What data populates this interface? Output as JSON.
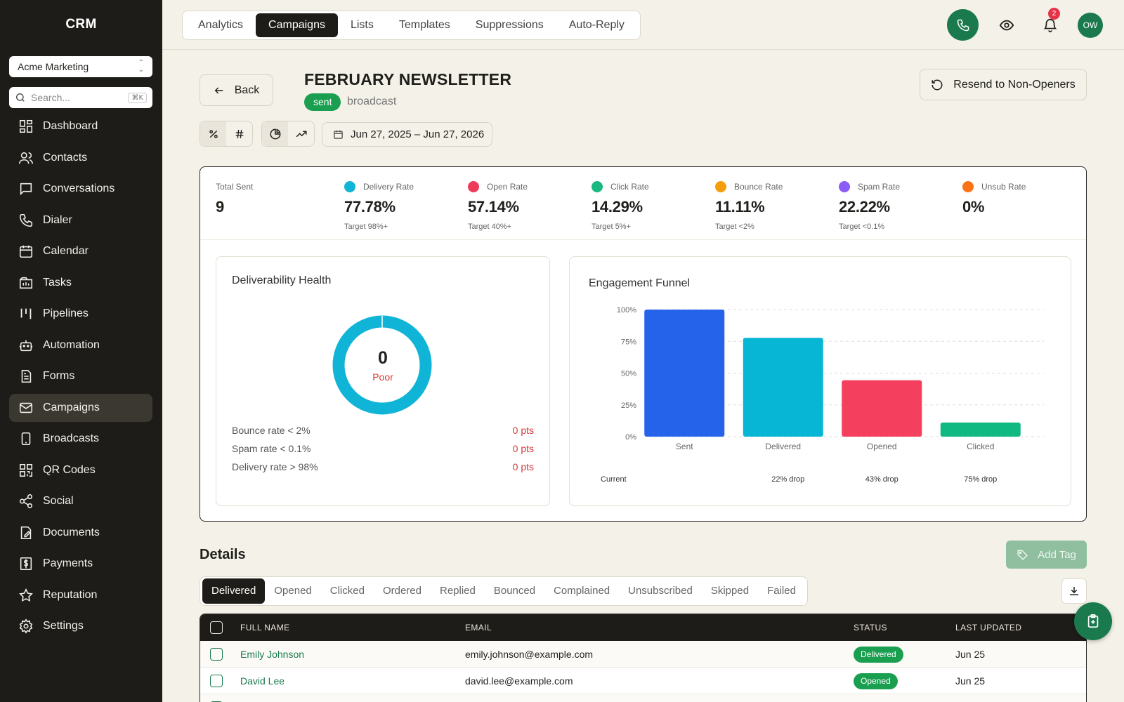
{
  "app": {
    "name": "CRM"
  },
  "sidebar": {
    "org": "Acme Marketing",
    "search_placeholder": "Search...",
    "search_shortcut": "⌘K",
    "items": [
      {
        "label": "Dashboard",
        "icon": "dashboard-icon"
      },
      {
        "label": "Contacts",
        "icon": "contacts-icon"
      },
      {
        "label": "Conversations",
        "icon": "chat-icon"
      },
      {
        "label": "Dialer",
        "icon": "phone-icon"
      },
      {
        "label": "Calendar",
        "icon": "calendar-icon"
      },
      {
        "label": "Tasks",
        "icon": "tasks-icon"
      },
      {
        "label": "Pipelines",
        "icon": "pipeline-icon"
      },
      {
        "label": "Automation",
        "icon": "robot-icon"
      },
      {
        "label": "Forms",
        "icon": "form-icon"
      },
      {
        "label": "Campaigns",
        "icon": "mail-icon",
        "active": true
      },
      {
        "label": "Broadcasts",
        "icon": "broadcast-icon"
      },
      {
        "label": "QR Codes",
        "icon": "qr-icon"
      },
      {
        "label": "Social",
        "icon": "share-icon"
      },
      {
        "label": "Documents",
        "icon": "document-icon"
      },
      {
        "label": "Payments",
        "icon": "dollar-icon"
      },
      {
        "label": "Reputation",
        "icon": "star-icon"
      },
      {
        "label": "Settings",
        "icon": "gear-icon"
      }
    ]
  },
  "topbar": {
    "tabs": [
      {
        "label": "Analytics"
      },
      {
        "label": "Campaigns",
        "active": true
      },
      {
        "label": "Lists"
      },
      {
        "label": "Templates"
      },
      {
        "label": "Suppressions"
      },
      {
        "label": "Auto-Reply"
      }
    ],
    "notification_count": "2",
    "avatar_initials": "OW"
  },
  "header": {
    "back_label": "Back",
    "title": "FEBRUARY NEWSLETTER",
    "status": "sent",
    "type": "broadcast",
    "resend_label": "Resend to Non-Openers",
    "date_range": "Jun 27, 2025 – Jun 27, 2026"
  },
  "stats": [
    {
      "label": "Total Sent",
      "value": "9",
      "target": ""
    },
    {
      "label": "Delivery Rate",
      "value": "77.78%",
      "target": "Target 98%+",
      "color": "#10b4d6"
    },
    {
      "label": "Open Rate",
      "value": "57.14%",
      "target": "Target 40%+",
      "color": "#ef3b5a"
    },
    {
      "label": "Click Rate",
      "value": "14.29%",
      "target": "Target 5%+",
      "color": "#19b981"
    },
    {
      "label": "Bounce Rate",
      "value": "11.11%",
      "target": "Target <2%",
      "color": "#f59e0b"
    },
    {
      "label": "Spam Rate",
      "value": "22.22%",
      "target": "Target <0.1%",
      "color": "#8b5cf6"
    },
    {
      "label": "Unsub Rate",
      "value": "0%",
      "target": "",
      "color": "#f97316"
    }
  ],
  "health": {
    "title": "Deliverability Health",
    "score": "0",
    "grade": "Poor",
    "ring_color": "#10b4d6",
    "rows": [
      {
        "label": "Bounce rate < 2%",
        "pts": "0 pts"
      },
      {
        "label": "Spam rate < 0.1%",
        "pts": "0 pts"
      },
      {
        "label": "Delivery rate > 98%",
        "pts": "0 pts"
      }
    ]
  },
  "chart_data": {
    "type": "bar",
    "title": "Engagement Funnel",
    "categories": [
      "Sent",
      "Delivered",
      "Opened",
      "Clicked"
    ],
    "values": [
      100,
      77.78,
      44.44,
      11.11
    ],
    "colors": [
      "#2563eb",
      "#06b6d4",
      "#f43f5e",
      "#10b981"
    ],
    "yticks": [
      "100%",
      "75%",
      "50%",
      "25%",
      "0%"
    ],
    "ylim": [
      0,
      100
    ],
    "grid": true,
    "footer": [
      "Current",
      "22% drop",
      "43% drop",
      "75% drop"
    ]
  },
  "details": {
    "title": "Details",
    "add_tag_label": "Add Tag",
    "filters": [
      {
        "label": "Delivered",
        "active": true
      },
      {
        "label": "Opened"
      },
      {
        "label": "Clicked"
      },
      {
        "label": "Ordered"
      },
      {
        "label": "Replied"
      },
      {
        "label": "Bounced"
      },
      {
        "label": "Complained"
      },
      {
        "label": "Unsubscribed"
      },
      {
        "label": "Skipped"
      },
      {
        "label": "Failed"
      }
    ],
    "columns": [
      "FULL NAME",
      "EMAIL",
      "STATUS",
      "LAST UPDATED"
    ],
    "rows": [
      {
        "name": "Emily Johnson",
        "email": "emily.johnson@example.com",
        "status": "Delivered",
        "updated": "Jun 25"
      },
      {
        "name": "David Lee",
        "email": "david.lee@example.com",
        "status": "Opened",
        "updated": "Jun 25"
      }
    ]
  }
}
